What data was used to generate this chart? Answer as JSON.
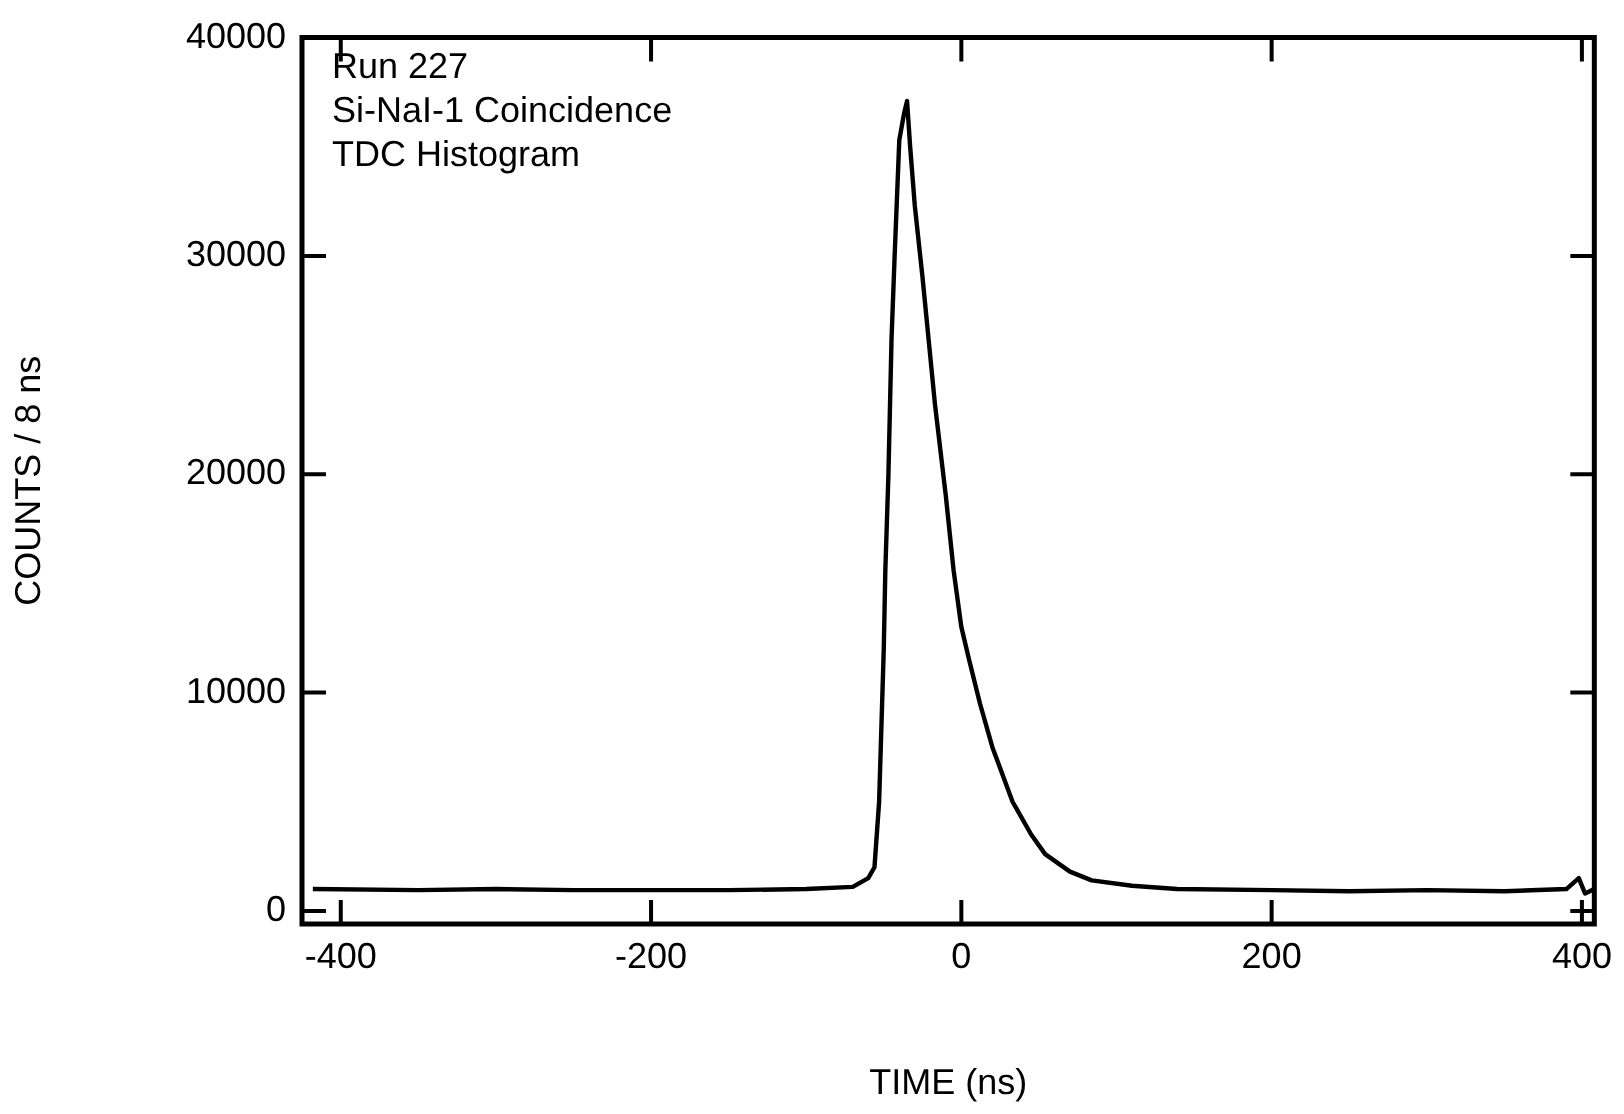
{
  "chart_data": {
    "type": "line",
    "xlabel": "TIME (ns)",
    "ylabel": "COUNTS / 8 ns",
    "annotations": [
      "Run 227",
      "Si-NaI-1 Coincidence",
      "TDC Histogram"
    ],
    "x": [
      -418,
      -350,
      -300,
      -250,
      -200,
      -150,
      -100,
      -70,
      -60,
      -56,
      -53,
      -50,
      -49,
      -47,
      -45,
      -43,
      -40,
      -37,
      -35,
      -33,
      -30,
      -25,
      -17,
      -10,
      -5,
      0,
      5,
      12,
      20,
      33,
      45,
      54,
      70,
      84,
      110,
      139,
      200,
      250,
      300,
      350,
      390,
      398,
      402,
      408
    ],
    "series": [
      {
        "color": "#000000",
        "values": [
          1000,
          950,
          1000,
          950,
          950,
          950,
          1000,
          1100,
          1500,
          2000,
          5000,
          12000,
          15600,
          20000,
          26200,
          30000,
          35300,
          36500,
          37100,
          35000,
          32300,
          29000,
          23200,
          19000,
          15600,
          13000,
          11500,
          9500,
          7500,
          5000,
          3500,
          2600,
          1800,
          1400,
          1150,
          1000,
          950,
          900,
          950,
          900,
          1000,
          1500,
          800,
          1000
        ]
      }
    ],
    "xlim": [
      -425,
      408
    ],
    "ylim": [
      -600,
      40000
    ],
    "xticks": [
      -400,
      -200,
      0,
      200,
      400
    ],
    "yticks": [
      0,
      10000,
      20000,
      30000,
      40000
    ],
    "grid": false,
    "legend": false,
    "marker": "none",
    "line_style": "solid"
  }
}
